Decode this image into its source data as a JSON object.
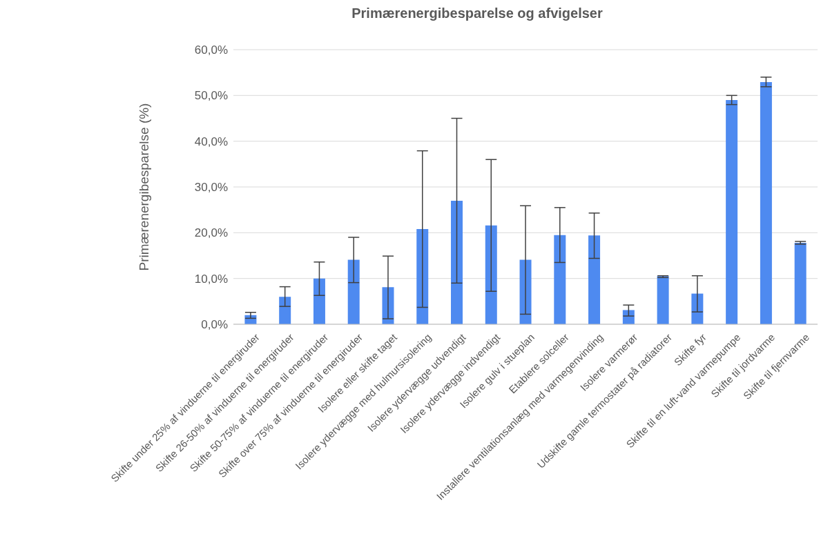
{
  "chart_data": {
    "type": "bar",
    "title": "Primærenergibesparelse og afvigelser",
    "ylabel": "Primærenergibesparelse (%)",
    "categories": [
      "Skifte under 25% af vinduerne til energiruder",
      "Skifte 26-50% af vinduerne til energiruder",
      "Skifte 50-75% af vinduerne til energiruder",
      "Skifte over 75% af vinduerne til energiruder",
      "Isolere eller skifte taget",
      "Isolere ydervægge med hulmursisolering",
      "Isolere ydervægge udvendigt",
      "Isolere ydervægge indvendigt",
      "Isolere gulv i stueplan",
      "Etablere solceller",
      "Installere ventilationsanlæg med varmegenvinding",
      "Isolere varmerør",
      "Udskifte gamle termostater på radiatorer",
      "Skifte fyr",
      "Skifte til en luft-vand varmepumpe",
      "Skifte til jordvarme",
      "Skifte til fjernvarme"
    ],
    "values": [
      2.0,
      6.0,
      10.0,
      14.1,
      8.1,
      20.8,
      27.0,
      21.6,
      14.1,
      19.5,
      19.4,
      3.1,
      10.5,
      6.7,
      49.0,
      52.9,
      17.8
    ],
    "errors": [
      [
        1.3,
        2.6
      ],
      [
        3.9,
        8.2
      ],
      [
        6.3,
        13.6
      ],
      [
        9.1,
        19.0
      ],
      [
        1.2,
        14.9
      ],
      [
        3.7,
        37.9
      ],
      [
        9.0,
        45.0
      ],
      [
        7.2,
        36.0
      ],
      [
        2.2,
        25.9
      ],
      [
        13.5,
        25.5
      ],
      [
        14.4,
        24.3
      ],
      [
        1.8,
        4.2
      ],
      [
        10.2,
        10.6
      ],
      [
        2.7,
        10.6
      ],
      [
        48.0,
        50.0
      ],
      [
        51.9,
        54.0
      ],
      [
        17.5,
        18.1
      ]
    ],
    "color": "#4e8af0",
    "ylim": [
      0,
      60
    ],
    "yticks": [
      {
        "value": 0,
        "label": "0,0%"
      },
      {
        "value": 10,
        "label": "10,0%"
      },
      {
        "value": 20,
        "label": "20,0%"
      },
      {
        "value": 30,
        "label": "30,0%"
      },
      {
        "value": 40,
        "label": "40,0%"
      },
      {
        "value": 50,
        "label": "50,0%"
      },
      {
        "value": 60,
        "label": "60,0%"
      }
    ],
    "grid": "y",
    "legend": false
  }
}
